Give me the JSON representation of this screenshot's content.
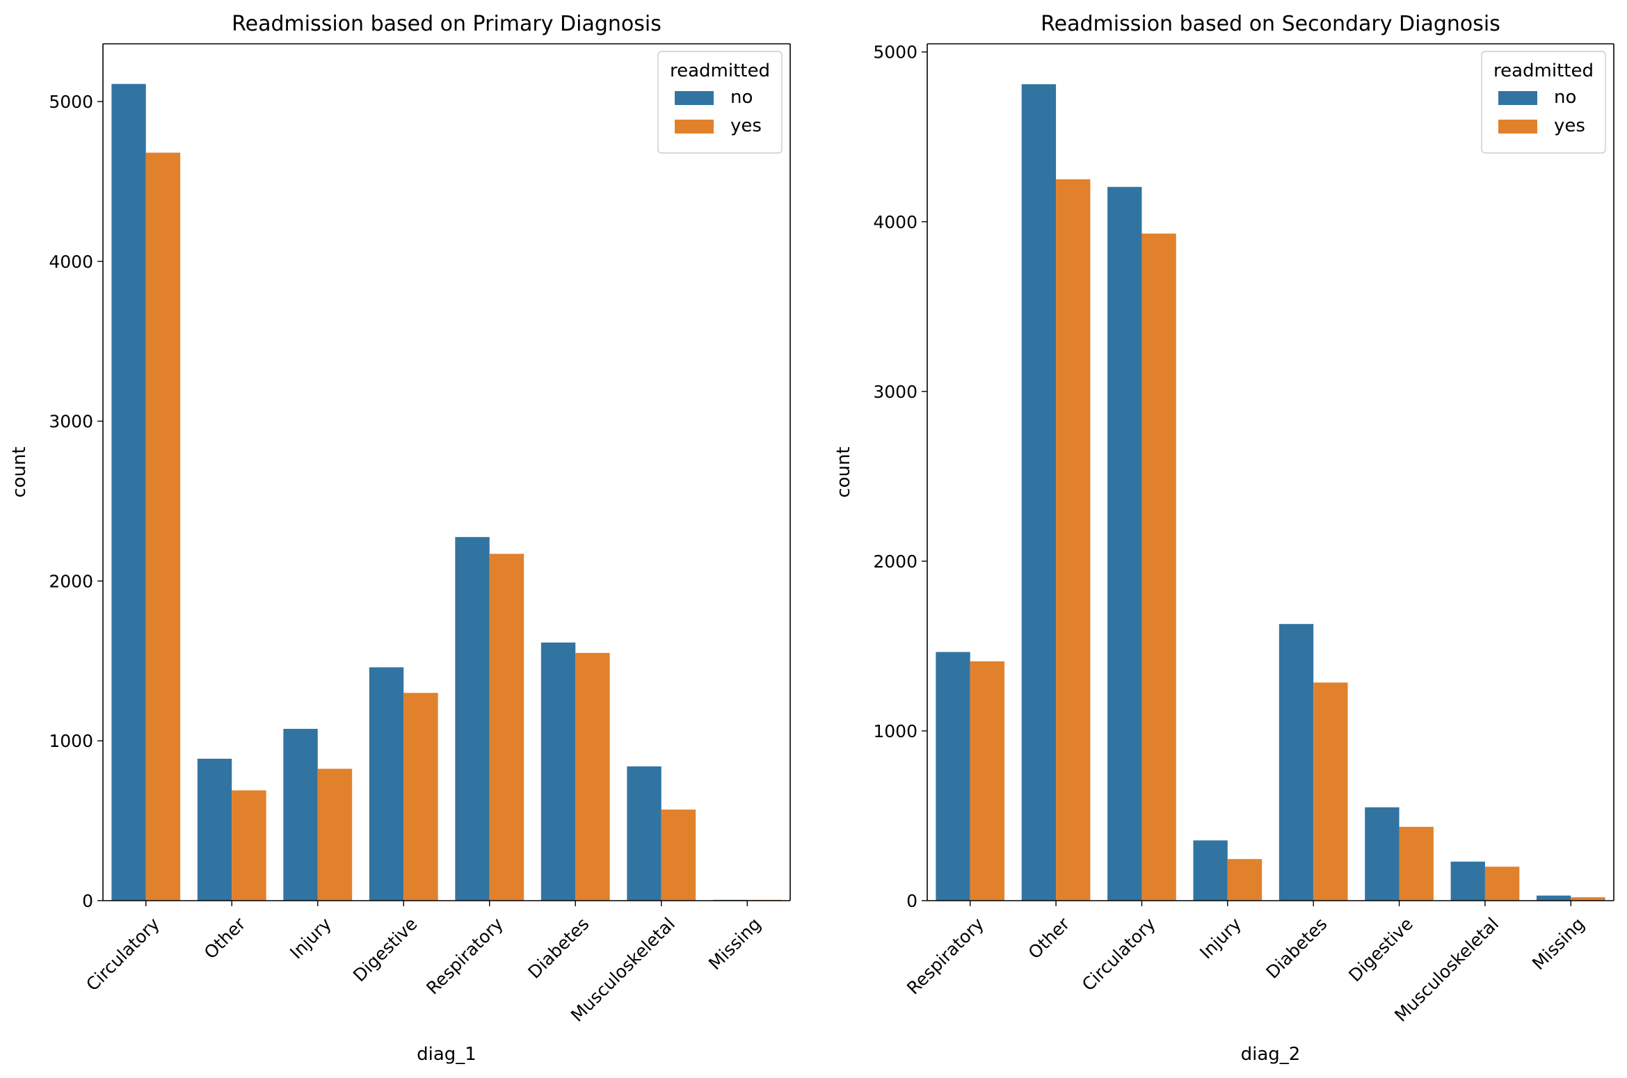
{
  "chart_data": [
    {
      "type": "bar",
      "title": "Readmission based on Primary Diagnosis",
      "xlabel": "diag_1",
      "ylabel": "count",
      "ylim": [
        0,
        5361
      ],
      "yticks": [
        0,
        1000,
        2000,
        3000,
        4000,
        5000
      ],
      "grid": false,
      "legend": {
        "title": "readmitted",
        "placement": "top-right"
      },
      "categories": [
        "Circulatory",
        "Other",
        "Injury",
        "Digestive",
        "Respiratory",
        "Diabetes",
        "Musculoskeletal",
        "Missing"
      ],
      "series": [
        {
          "name": "no",
          "color": "#3274a1",
          "values": [
            5110,
            888,
            1075,
            1460,
            2275,
            1615,
            840,
            5
          ]
        },
        {
          "name": "yes",
          "color": "#e1812c",
          "values": [
            4680,
            690,
            825,
            1300,
            2170,
            1550,
            570,
            5
          ]
        }
      ]
    },
    {
      "type": "bar",
      "title": "Readmission based on Secondary Diagnosis",
      "xlabel": "diag_2",
      "ylabel": "count",
      "ylim": [
        0,
        5048
      ],
      "yticks": [
        0,
        1000,
        2000,
        3000,
        4000,
        5000
      ],
      "grid": false,
      "legend": {
        "title": "readmitted",
        "placement": "top-right"
      },
      "categories": [
        "Respiratory",
        "Other",
        "Circulatory",
        "Injury",
        "Diabetes",
        "Digestive",
        "Musculoskeletal",
        "Missing"
      ],
      "series": [
        {
          "name": "no",
          "color": "#3274a1",
          "values": [
            1465,
            4810,
            4205,
            355,
            1630,
            550,
            230,
            30
          ]
        },
        {
          "name": "yes",
          "color": "#e1812c",
          "values": [
            1410,
            4250,
            3930,
            245,
            1285,
            435,
            200,
            20
          ]
        }
      ]
    }
  ]
}
